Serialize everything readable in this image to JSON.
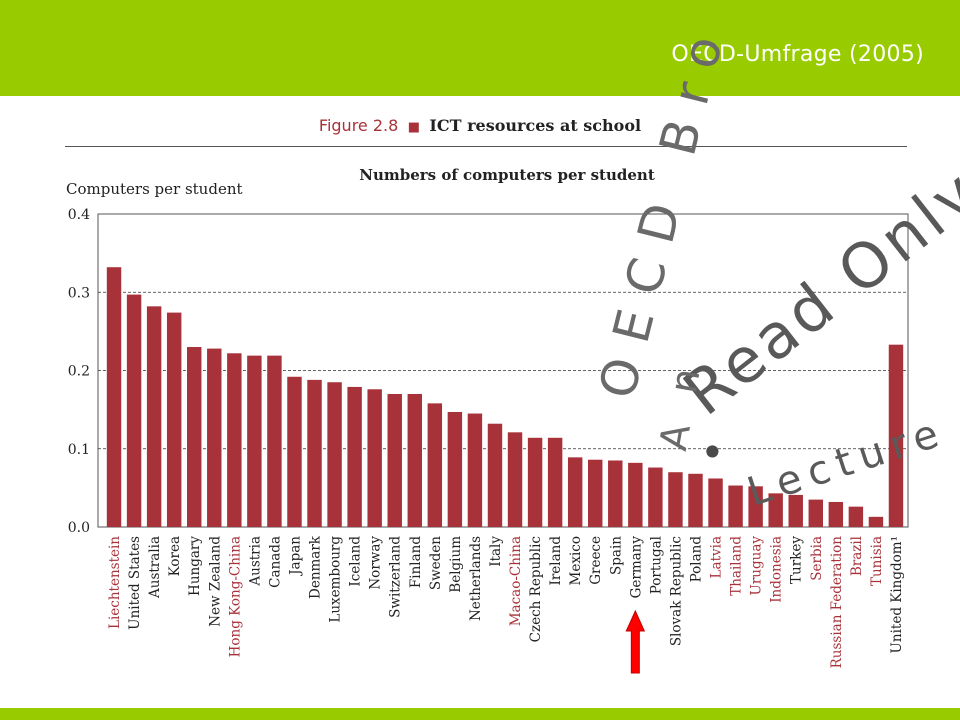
{
  "slide": {
    "title": "OECD-Umfrage (2005)"
  },
  "figure": {
    "number": "Figure 2.8",
    "marker": "■",
    "name": "ICT resources at school"
  },
  "chart_data": {
    "type": "bar",
    "title": "Numbers of computers per student",
    "ylabel": "Computers per student",
    "xlabel": "",
    "ylim": [
      0,
      0.4
    ],
    "yticks": [
      "0.0",
      "0.1",
      "0.2",
      "0.3",
      "0.4"
    ],
    "grid": "dashed horizontal at 0.1, 0.2, 0.3",
    "bar_color": "#a8323a",
    "partner_label_color": "#a8323a",
    "oecd_label_color": "#222222",
    "categories": [
      "Liechtenstein",
      "United States",
      "Australia",
      "Korea",
      "Hungary",
      "New Zealand",
      "Hong Kong-China",
      "Austria",
      "Canada",
      "Japan",
      "Denmark",
      "Luxembourg",
      "Iceland",
      "Norway",
      "Switzerland",
      "Finland",
      "Sweden",
      "Belgium",
      "Netherlands",
      "Italy",
      "Macao-China",
      "Czech Republic",
      "Ireland",
      "Mexico",
      "Greece",
      "Spain",
      "Germany",
      "Portugal",
      "Slovak Republic",
      "Poland",
      "Latvia",
      "Thailand",
      "Uruguay",
      "Indonesia",
      "Turkey",
      "Serbia",
      "Russian Federation",
      "Brazil",
      "Tunisia",
      "United Kingdom¹"
    ],
    "values": [
      0.332,
      0.297,
      0.282,
      0.274,
      0.23,
      0.228,
      0.222,
      0.219,
      0.219,
      0.192,
      0.188,
      0.185,
      0.179,
      0.176,
      0.17,
      0.17,
      0.158,
      0.147,
      0.145,
      0.132,
      0.121,
      0.114,
      0.114,
      0.089,
      0.086,
      0.085,
      0.082,
      0.076,
      0.07,
      0.068,
      0.062,
      0.053,
      0.052,
      0.043,
      0.041,
      0.035,
      0.032,
      0.026,
      0.013,
      0.233
    ],
    "partner_countries": [
      "Liechtenstein",
      "Hong Kong-China",
      "Macao-China",
      "Latvia",
      "Thailand",
      "Uruguay",
      "Indonesia",
      "Serbia",
      "Russian Federation",
      "Brazil",
      "Tunisia"
    ],
    "highlighted_category": "Germany"
  },
  "annotation": {
    "arrow_color": "#ff0000",
    "arrow_border": "#c00000",
    "points_to": "Germany"
  },
  "watermark": {
    "line1": "OECD Bro",
    "line2": "Read Only J",
    "line3": "Lecture s",
    "prefix": "A n",
    "bullet": "•"
  }
}
